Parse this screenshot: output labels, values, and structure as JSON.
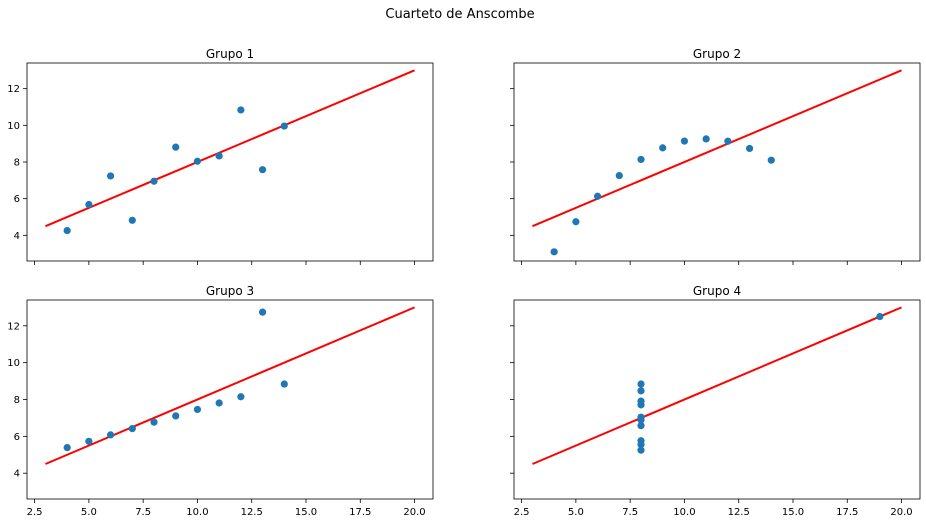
{
  "figure": {
    "suptitle": "Cuarteto de Anscombe"
  },
  "colors": {
    "point": "#1f77b4",
    "fit_line": "#ff0000",
    "axes": "#000000",
    "background": "#ffffff"
  },
  "chart_data": [
    {
      "type": "scatter",
      "title": "Grupo 1",
      "xlabel": "",
      "ylabel": "",
      "xlim": [
        2.15,
        20.85
      ],
      "ylim": [
        2.6,
        13.4
      ],
      "xticks": [
        "2.5",
        "5.0",
        "7.5",
        "10.0",
        "12.5",
        "15.0",
        "17.5",
        "20.0"
      ],
      "xtick_values": [
        2.5,
        5.0,
        7.5,
        10.0,
        12.5,
        15.0,
        17.5,
        20.0
      ],
      "yticks": [
        "4",
        "6",
        "8",
        "10",
        "12"
      ],
      "ytick_values": [
        4,
        6,
        8,
        10,
        12
      ],
      "show_xticklabels": false,
      "show_yticklabels": true,
      "x": [
        10,
        8,
        13,
        9,
        11,
        14,
        6,
        4,
        12,
        7,
        5
      ],
      "y": [
        8.04,
        6.95,
        7.58,
        8.81,
        8.33,
        9.96,
        7.24,
        4.26,
        10.84,
        4.82,
        5.68
      ],
      "fit_line": {
        "x": [
          3,
          20
        ],
        "y": [
          4.5,
          13.0
        ]
      },
      "grid": false
    },
    {
      "type": "scatter",
      "title": "Grupo 2",
      "xlabel": "",
      "ylabel": "",
      "xlim": [
        2.15,
        20.85
      ],
      "ylim": [
        2.6,
        13.4
      ],
      "xticks": [
        "2.5",
        "5.0",
        "7.5",
        "10.0",
        "12.5",
        "15.0",
        "17.5",
        "20.0"
      ],
      "xtick_values": [
        2.5,
        5.0,
        7.5,
        10.0,
        12.5,
        15.0,
        17.5,
        20.0
      ],
      "yticks": [
        "4",
        "6",
        "8",
        "10",
        "12"
      ],
      "ytick_values": [
        4,
        6,
        8,
        10,
        12
      ],
      "show_xticklabels": false,
      "show_yticklabels": false,
      "x": [
        10,
        8,
        13,
        9,
        11,
        14,
        6,
        4,
        12,
        7,
        5
      ],
      "y": [
        9.14,
        8.14,
        8.74,
        8.77,
        9.26,
        8.1,
        6.13,
        3.1,
        9.13,
        7.26,
        4.74
      ],
      "fit_line": {
        "x": [
          3,
          20
        ],
        "y": [
          4.5,
          13.0
        ]
      },
      "grid": false
    },
    {
      "type": "scatter",
      "title": "Grupo 3",
      "xlabel": "",
      "ylabel": "",
      "xlim": [
        2.15,
        20.85
      ],
      "ylim": [
        2.6,
        13.4
      ],
      "xticks": [
        "2.5",
        "5.0",
        "7.5",
        "10.0",
        "12.5",
        "15.0",
        "17.5",
        "20.0"
      ],
      "xtick_values": [
        2.5,
        5.0,
        7.5,
        10.0,
        12.5,
        15.0,
        17.5,
        20.0
      ],
      "yticks": [
        "4",
        "6",
        "8",
        "10",
        "12"
      ],
      "ytick_values": [
        4,
        6,
        8,
        10,
        12
      ],
      "show_xticklabels": true,
      "show_yticklabels": true,
      "x": [
        10,
        8,
        13,
        9,
        11,
        14,
        6,
        4,
        12,
        7,
        5
      ],
      "y": [
        7.46,
        6.77,
        12.74,
        7.11,
        7.81,
        8.84,
        6.08,
        5.39,
        8.15,
        6.42,
        5.73
      ],
      "fit_line": {
        "x": [
          3,
          20
        ],
        "y": [
          4.5,
          13.0
        ]
      },
      "grid": false
    },
    {
      "type": "scatter",
      "title": "Grupo 4",
      "xlabel": "",
      "ylabel": "",
      "xlim": [
        2.15,
        20.85
      ],
      "ylim": [
        2.6,
        13.4
      ],
      "xticks": [
        "2.5",
        "5.0",
        "7.5",
        "10.0",
        "12.5",
        "15.0",
        "17.5",
        "20.0"
      ],
      "xtick_values": [
        2.5,
        5.0,
        7.5,
        10.0,
        12.5,
        15.0,
        17.5,
        20.0
      ],
      "yticks": [
        "4",
        "6",
        "8",
        "10",
        "12"
      ],
      "ytick_values": [
        4,
        6,
        8,
        10,
        12
      ],
      "show_xticklabels": true,
      "show_yticklabels": false,
      "x": [
        8,
        8,
        8,
        8,
        8,
        8,
        8,
        19,
        8,
        8,
        8
      ],
      "y": [
        6.58,
        5.76,
        7.71,
        8.84,
        8.47,
        7.04,
        5.25,
        12.5,
        5.56,
        7.91,
        6.89
      ],
      "fit_line": {
        "x": [
          3,
          20
        ],
        "y": [
          4.5,
          13.0
        ]
      },
      "grid": false
    }
  ]
}
